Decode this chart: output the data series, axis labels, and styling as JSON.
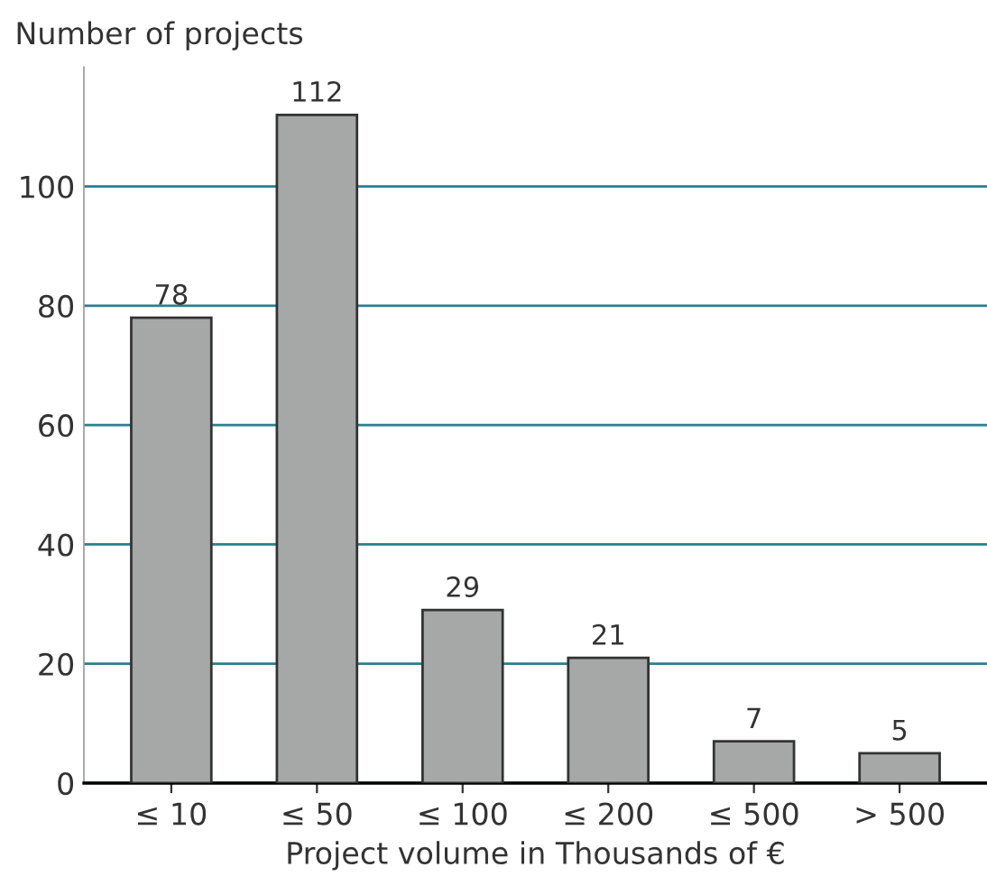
{
  "chart_data": {
    "type": "bar",
    "ylabel": "Number of projects",
    "xlabel": "Project volume in Thousands of €",
    "categories": [
      "≤ 10",
      "≤ 50",
      "≤ 100",
      "≤ 200",
      "≤ 500",
      "> 500"
    ],
    "values": [
      78,
      112,
      29,
      21,
      7,
      5
    ],
    "color": "#a6a8a8",
    "data_labels": true,
    "ylim": [
      0,
      120
    ],
    "yticks": [
      0,
      20,
      40,
      60,
      80,
      100
    ],
    "grid": "y"
  }
}
